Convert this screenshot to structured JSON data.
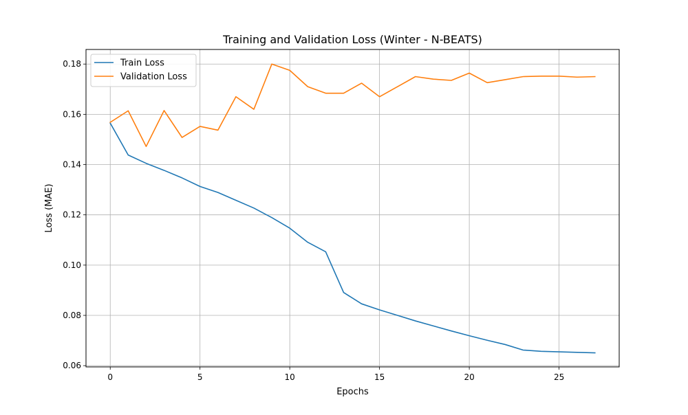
{
  "chart_data": {
    "type": "line",
    "title": "Training and Validation Loss (Winter - N-BEATS)",
    "xlabel": "Epochs",
    "ylabel": "Loss (MAE)",
    "xlim": [
      -1.35,
      28.35
    ],
    "ylim": [
      0.0595,
      0.1858
    ],
    "x_ticks": [
      0,
      5,
      10,
      15,
      20,
      25
    ],
    "y_ticks": [
      0.06,
      0.08,
      0.1,
      0.12,
      0.14,
      0.16,
      0.18
    ],
    "y_tick_labels": [
      "0.06",
      "0.08",
      "0.10",
      "0.12",
      "0.14",
      "0.16",
      "0.18"
    ],
    "grid": true,
    "legend": "top-left",
    "x": [
      0,
      1,
      2,
      3,
      4,
      5,
      6,
      7,
      8,
      9,
      10,
      11,
      12,
      13,
      14,
      15,
      16,
      17,
      18,
      19,
      20,
      21,
      22,
      23,
      24,
      25,
      26,
      27
    ],
    "series": [
      {
        "name": "Train Loss",
        "color": "#1f77b4",
        "values": [
          0.1565,
          0.1438,
          0.1405,
          0.1377,
          0.1347,
          0.1313,
          0.1289,
          0.1258,
          0.1227,
          0.1189,
          0.1147,
          0.1091,
          0.1053,
          0.0891,
          0.0846,
          0.0822,
          0.08,
          0.0778,
          0.0758,
          0.0738,
          0.0719,
          0.0701,
          0.0684,
          0.0662,
          0.0657,
          0.0655,
          0.0653,
          0.0651
        ]
      },
      {
        "name": "Validation Loss",
        "color": "#ff7f0e",
        "values": [
          0.1568,
          0.1614,
          0.1472,
          0.1615,
          0.1508,
          0.1552,
          0.1537,
          0.167,
          0.162,
          0.18,
          0.1775,
          0.171,
          0.1684,
          0.1684,
          0.1724,
          0.167,
          0.171,
          0.175,
          0.174,
          0.1735,
          0.1764,
          0.1726,
          0.1738,
          0.175,
          0.1752,
          0.1752,
          0.1748,
          0.175
        ]
      }
    ]
  }
}
